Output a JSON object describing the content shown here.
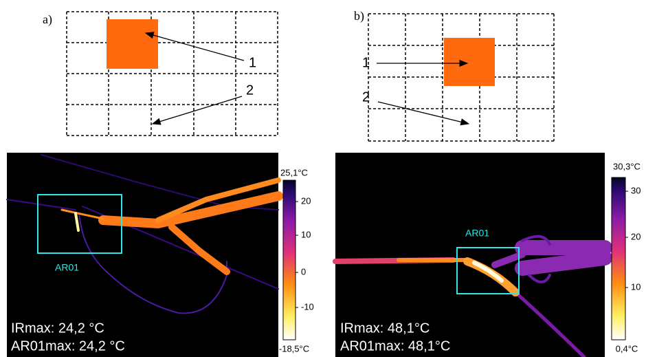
{
  "panel_a": {
    "label": "a)",
    "callout_1": "1",
    "callout_2": "2"
  },
  "panel_b": {
    "label": "b)",
    "callout_1": "1",
    "callout_2": "2"
  },
  "thermo_left": {
    "scale_max": "25,1°C",
    "scale_min": "-18,5°C",
    "ticks": [
      "20",
      "10",
      "0",
      "-10"
    ],
    "roi": "AR01",
    "ir_max": "IRmax: 24,2 °C",
    "roi_max": "AR01max: 24,2 °C"
  },
  "thermo_right": {
    "scale_max": "30,3°C",
    "scale_min": "0,4°C",
    "ticks": [
      "30",
      "20",
      "10"
    ],
    "roi": "AR01",
    "ir_max": "IRmax: 48,1°C",
    "roi_max": "AR01max: 48,1°C"
  }
}
